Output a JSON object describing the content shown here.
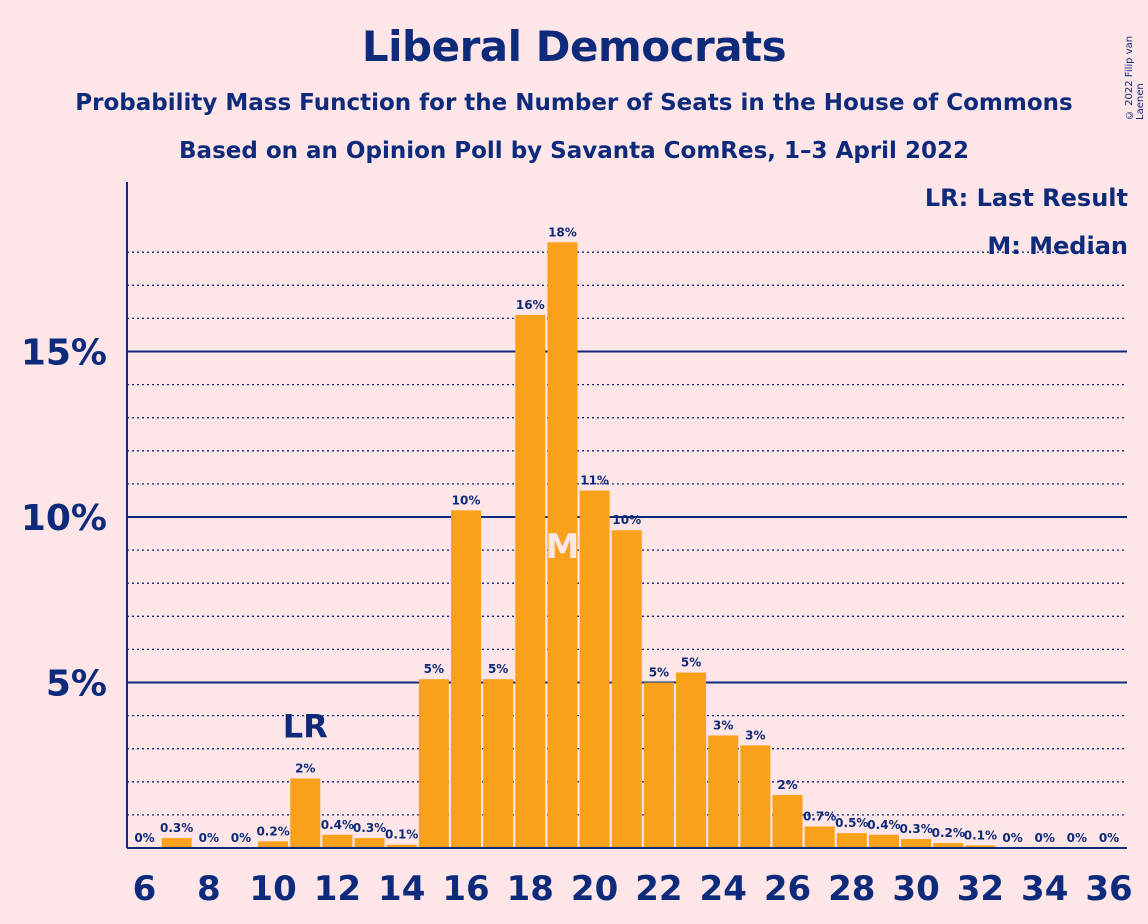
{
  "header": {
    "title": "Liberal Democrats",
    "subtitle": "Probability Mass Function for the Number of Seats in the House of Commons",
    "subtitle2": "Based on an Opinion Poll by Savanta ComRes, 1–3 April 2022",
    "copyright": "© 2022 Filip van Laenen"
  },
  "legend": {
    "last_result": "LR: Last Result",
    "median": "M: Median"
  },
  "chart_data": {
    "type": "bar",
    "x": [
      6,
      7,
      8,
      9,
      10,
      11,
      12,
      13,
      14,
      15,
      16,
      17,
      18,
      19,
      20,
      21,
      22,
      23,
      24,
      25,
      26,
      27,
      28,
      29,
      30,
      31,
      32,
      33,
      34,
      35,
      36
    ],
    "values": [
      0,
      0.3,
      0,
      0,
      0.2,
      2.1,
      0.4,
      0.3,
      0.1,
      5.1,
      10.2,
      5.1,
      16.1,
      18.3,
      10.8,
      9.6,
      5.0,
      5.3,
      3.4,
      3.1,
      1.6,
      0.65,
      0.45,
      0.4,
      0.27,
      0.15,
      0.08,
      0,
      0,
      0,
      0
    ],
    "labels": [
      "0%",
      "0.3%",
      "0%",
      "0%",
      "0.2%",
      "2%",
      "0.4%",
      "0.3%",
      "0.1%",
      "5%",
      "10%",
      "5%",
      "16%",
      "18%",
      "11%",
      "10%",
      "5%",
      "5%",
      "3%",
      "3%",
      "2%",
      "0.7%",
      "0.5%",
      "0.4%",
      "0.3%",
      "0.2%",
      "0.1%",
      "0%",
      "0%",
      "0%",
      "0%"
    ],
    "x_tick_labels": [
      "6",
      "8",
      "10",
      "12",
      "14",
      "16",
      "18",
      "20",
      "22",
      "24",
      "26",
      "28",
      "30",
      "32",
      "34",
      "36"
    ],
    "y_tick_labels": [
      "5%",
      "10%",
      "15%"
    ],
    "y_ticks": [
      5,
      10,
      15
    ],
    "ylim": [
      0,
      20
    ],
    "last_result": 11,
    "last_result_label": "LR",
    "median": 19,
    "median_label": "M",
    "bar_color": "#f9a11b",
    "axis_color": "#0e2a7a"
  }
}
